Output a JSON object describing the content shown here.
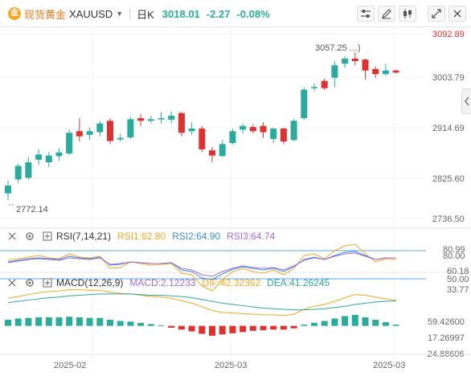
{
  "header": {
    "brand_glyph": "金",
    "symbol_cn": "现货黄金",
    "symbol_code": "XAUUSD",
    "period": "日K",
    "last_price": "3018.01",
    "change": "-2.27",
    "change_pct": "-0.08%",
    "accent_up": "#e03131",
    "accent_down": "#2bab9c"
  },
  "toolbar": {
    "icons": [
      "indicator-settings-icon",
      "draw-icon",
      "candle-style-icon",
      "expand-icon",
      "close-icon"
    ]
  },
  "price_axis": {
    "ticks": [
      "3092.89",
      "3003.79",
      "2914.69",
      "2825.60",
      "2736.50"
    ],
    "high_label": "3057.25",
    "low_label": "2772.14"
  },
  "rsi": {
    "title": "RSI(7,14,21)",
    "rsi1": "RSI1:62.80",
    "rsi2": "RSI2:64.90",
    "rsi3": "RSI3:64.74",
    "axis": [
      "80.99",
      "60.18",
      "50.00",
      "33.77"
    ],
    "axis_over": "80.00",
    "colors": {
      "rsi1": "#f5a623",
      "rsi2": "#3a8fd8",
      "rsi3": "#a56bd8"
    }
  },
  "macd": {
    "title": "MACD(12,26,9)",
    "macd": "MACD:2.12233",
    "dif": "DIF:42.32362",
    "dea": "DEA:41.26245",
    "axis": [
      "59.42600",
      "17.26997",
      "-24.88606"
    ],
    "colors": {
      "macd": "#a56bd8",
      "dif": "#f5a623",
      "dea": "#2bab9c"
    }
  },
  "x_axis": {
    "labels": [
      "2025-02",
      "2025-03",
      "2025-03"
    ]
  },
  "chart_data": {
    "type": "candlestick",
    "ylim": [
      2736.5,
      3092.89
    ],
    "candles": [
      {
        "o": 2785,
        "c": 2800,
        "h": 2810,
        "l": 2772
      },
      {
        "o": 2812,
        "c": 2838,
        "h": 2842,
        "l": 2805
      },
      {
        "o": 2815,
        "c": 2845,
        "h": 2855,
        "l": 2812
      },
      {
        "o": 2850,
        "c": 2860,
        "h": 2870,
        "l": 2840
      },
      {
        "o": 2845,
        "c": 2858,
        "h": 2865,
        "l": 2835
      },
      {
        "o": 2857,
        "c": 2864,
        "h": 2872,
        "l": 2848
      },
      {
        "o": 2862,
        "c": 2902,
        "h": 2908,
        "l": 2858
      },
      {
        "o": 2905,
        "c": 2895,
        "h": 2930,
        "l": 2885
      },
      {
        "o": 2898,
        "c": 2905,
        "h": 2912,
        "l": 2888
      },
      {
        "o": 2903,
        "c": 2920,
        "h": 2925,
        "l": 2895
      },
      {
        "o": 2925,
        "c": 2886,
        "h": 2930,
        "l": 2880
      },
      {
        "o": 2889,
        "c": 2892,
        "h": 2900,
        "l": 2885
      },
      {
        "o": 2893,
        "c": 2928,
        "h": 2933,
        "l": 2890
      },
      {
        "o": 2930,
        "c": 2925,
        "h": 2938,
        "l": 2915
      },
      {
        "o": 2925,
        "c": 2928,
        "h": 2935,
        "l": 2920
      },
      {
        "o": 2928,
        "c": 2930,
        "h": 2942,
        "l": 2920
      },
      {
        "o": 2927,
        "c": 2935,
        "h": 2943,
        "l": 2920
      },
      {
        "o": 2940,
        "c": 2902,
        "h": 2942,
        "l": 2895
      },
      {
        "o": 2905,
        "c": 2910,
        "h": 2922,
        "l": 2898
      },
      {
        "o": 2910,
        "c": 2870,
        "h": 2915,
        "l": 2865
      },
      {
        "o": 2868,
        "c": 2858,
        "h": 2875,
        "l": 2845
      },
      {
        "o": 2857,
        "c": 2880,
        "h": 2888,
        "l": 2855
      },
      {
        "o": 2882,
        "c": 2905,
        "h": 2910,
        "l": 2880
      },
      {
        "o": 2908,
        "c": 2915,
        "h": 2920,
        "l": 2900
      },
      {
        "o": 2913,
        "c": 2905,
        "h": 2918,
        "l": 2900
      },
      {
        "o": 2915,
        "c": 2903,
        "h": 2922,
        "l": 2892
      },
      {
        "o": 2890,
        "c": 2910,
        "h": 2912,
        "l": 2882
      },
      {
        "o": 2910,
        "c": 2885,
        "h": 2912,
        "l": 2880
      },
      {
        "o": 2888,
        "c": 2925,
        "h": 2928,
        "l": 2885
      },
      {
        "o": 2930,
        "c": 2985,
        "h": 2990,
        "l": 2927
      },
      {
        "o": 2990,
        "c": 2990,
        "h": 2997,
        "l": 2982
      },
      {
        "o": 3002,
        "c": 2988,
        "h": 3006,
        "l": 2984
      },
      {
        "o": 3008,
        "c": 3032,
        "h": 3040,
        "l": 2990
      },
      {
        "o": 3035,
        "c": 3045,
        "h": 3050,
        "l": 3027
      },
      {
        "o": 3045,
        "c": 3040,
        "h": 3057,
        "l": 3032
      },
      {
        "o": 3043,
        "c": 3022,
        "h": 3045,
        "l": 3005
      },
      {
        "o": 3025,
        "c": 3015,
        "h": 3030,
        "l": 3008
      },
      {
        "o": 3015,
        "c": 3022,
        "h": 3035,
        "l": 3012
      },
      {
        "o": 3022,
        "c": 3018,
        "h": 3024,
        "l": 3016
      }
    ],
    "rsi_range": [
      20,
      90
    ],
    "rsi1": [
      62,
      64,
      66,
      68,
      65,
      64,
      70,
      66,
      65,
      67,
      52,
      53,
      60,
      58,
      56,
      57,
      58,
      46,
      44,
      30,
      24,
      38,
      48,
      52,
      48,
      46,
      50,
      44,
      52,
      68,
      70,
      64,
      74,
      80,
      82,
      70,
      60,
      64,
      63
    ],
    "rsi2": [
      60,
      62,
      64,
      65,
      64,
      63,
      67,
      65,
      64,
      66,
      56,
      57,
      60,
      59,
      58,
      58,
      59,
      50,
      48,
      40,
      38,
      45,
      51,
      54,
      52,
      50,
      52,
      48,
      54,
      63,
      66,
      63,
      68,
      72,
      73,
      68,
      63,
      65,
      65
    ],
    "rsi3": [
      59,
      61,
      63,
      64,
      63,
      62,
      65,
      64,
      63,
      65,
      57,
      58,
      60,
      59,
      58,
      58,
      59,
      52,
      50,
      44,
      42,
      48,
      52,
      55,
      53,
      52,
      53,
      50,
      55,
      62,
      65,
      63,
      67,
      70,
      71,
      67,
      63,
      65,
      65
    ],
    "macd_range": [
      -45,
      65
    ],
    "macd_hist": [
      10,
      12,
      13,
      14,
      14,
      14,
      15,
      14,
      13,
      13,
      10,
      8,
      7,
      5,
      3,
      1,
      -3,
      -6,
      -9,
      -13,
      -16,
      -14,
      -12,
      -10,
      -8,
      -7,
      -6,
      -6,
      -4,
      2,
      5,
      8,
      12,
      16,
      18,
      14,
      10,
      6,
      2
    ],
    "dif": [
      45,
      48,
      51,
      54,
      56,
      57,
      59,
      59,
      58,
      58,
      55,
      53,
      52,
      50,
      48,
      47,
      45,
      41,
      37,
      31,
      25,
      22,
      21,
      20,
      19,
      18,
      18,
      17,
      19,
      27,
      32,
      35,
      40,
      46,
      51,
      50,
      47,
      44,
      42
    ],
    "dea": [
      38,
      40,
      42,
      44,
      46,
      47,
      49,
      50,
      51,
      52,
      52,
      52,
      52,
      51,
      50,
      50,
      49,
      48,
      46,
      43,
      40,
      37,
      35,
      33,
      31,
      29,
      28,
      27,
      26,
      26,
      27,
      28,
      30,
      32,
      35,
      37,
      39,
      40,
      41
    ]
  }
}
